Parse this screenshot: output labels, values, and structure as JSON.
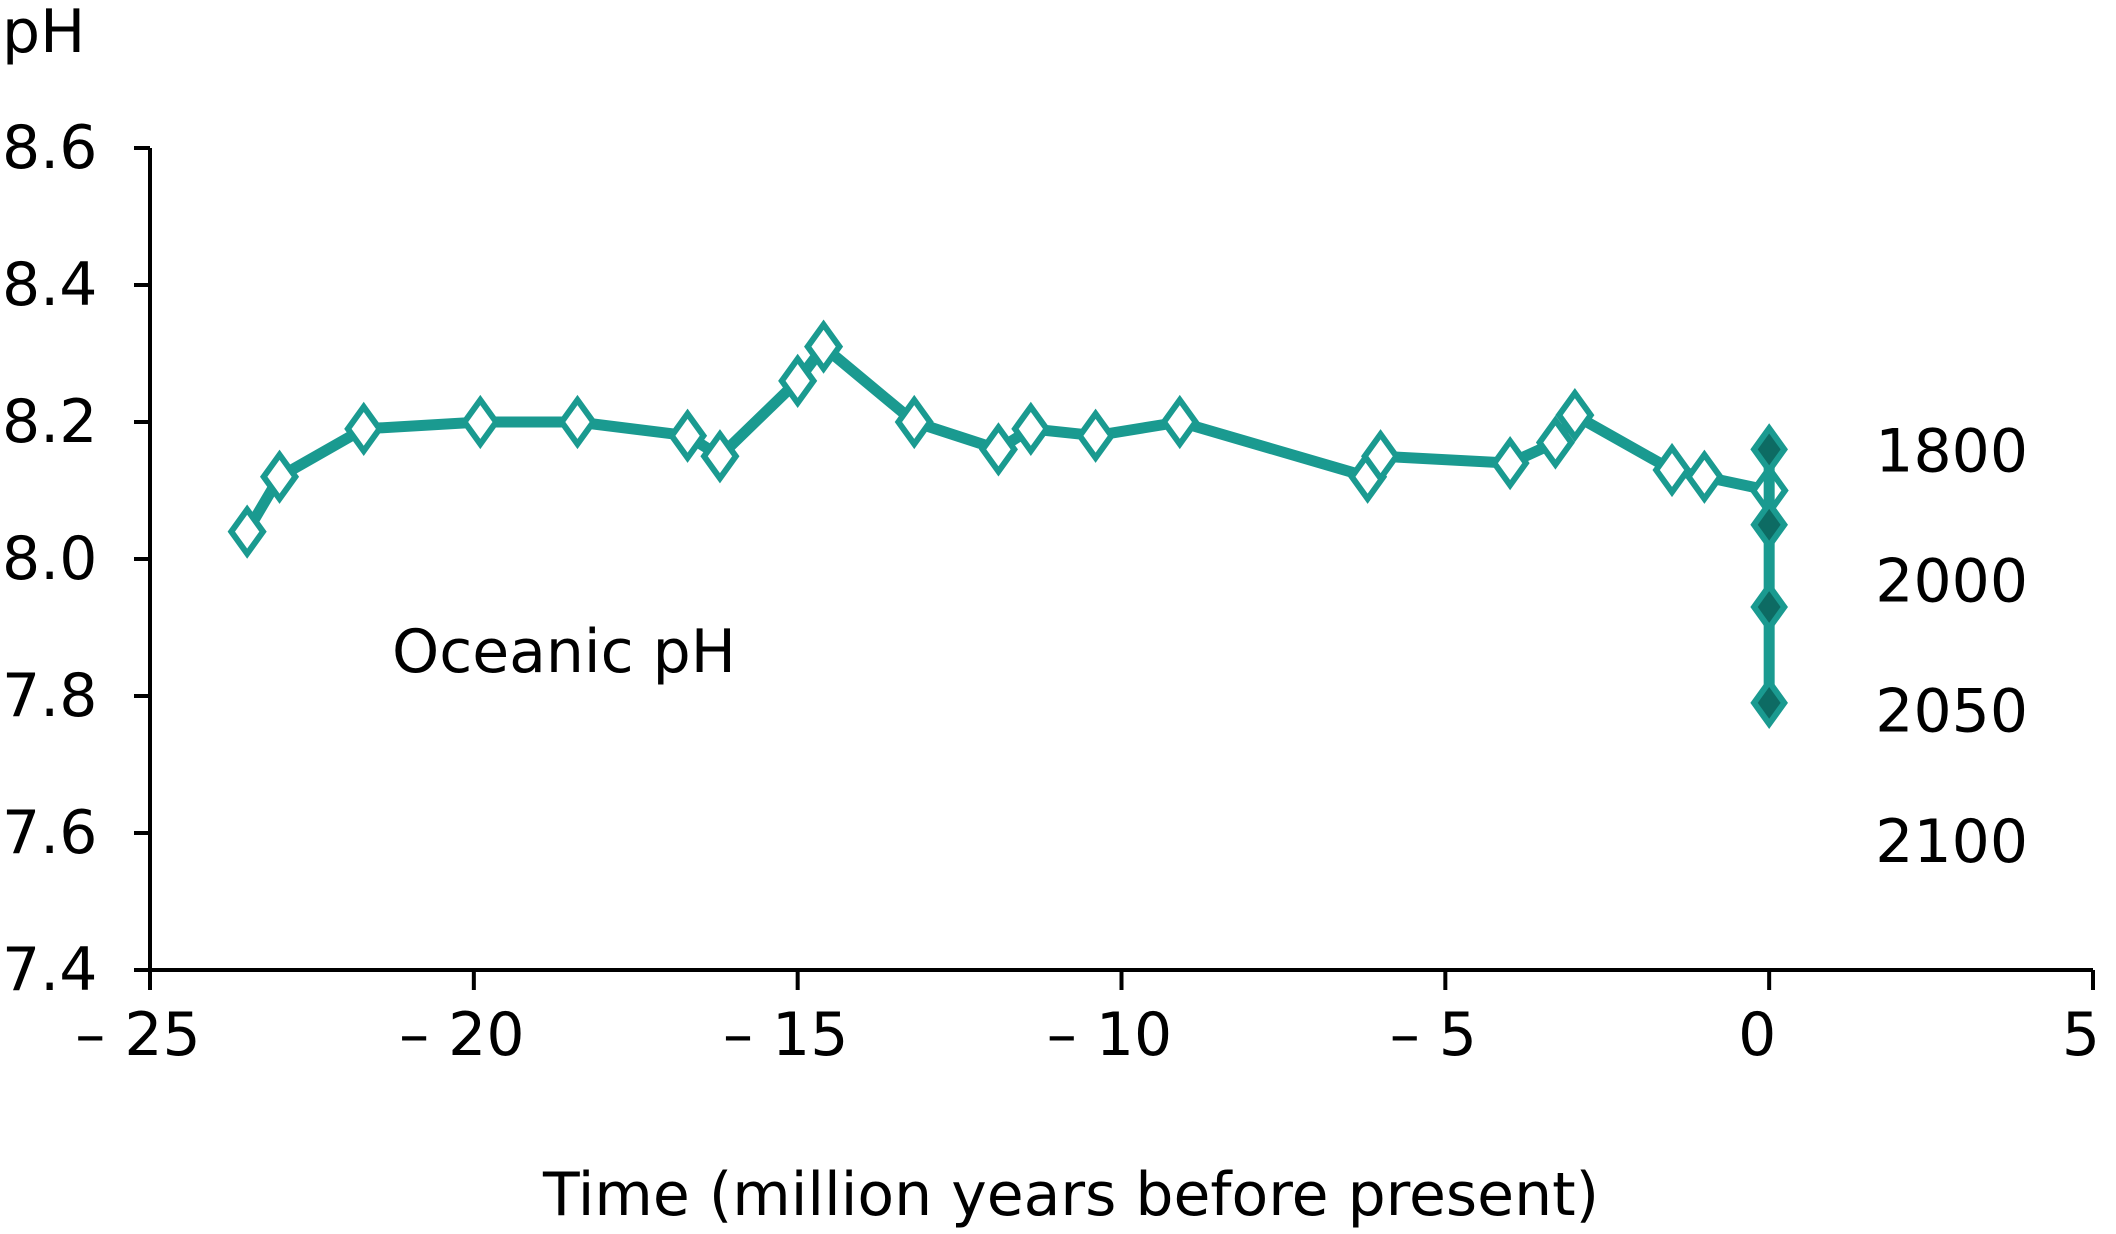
{
  "chart_data": {
    "type": "line",
    "ylabel": "pH",
    "xlabel": "Time (million years before present)",
    "xlim": [
      -25,
      5
    ],
    "ylim": [
      7.4,
      8.6
    ],
    "grid": false,
    "x_ticks": [
      {
        "value": -25,
        "label": "– 25"
      },
      {
        "value": -20,
        "label": "– 20"
      },
      {
        "value": -15,
        "label": "– 15"
      },
      {
        "value": -10,
        "label": "– 10"
      },
      {
        "value": -5,
        "label": "– 5"
      },
      {
        "value": 0,
        "label": "0"
      },
      {
        "value": 5,
        "label": "5"
      }
    ],
    "y_ticks": [
      {
        "value": 8.6,
        "label": "8.6"
      },
      {
        "value": 8.4,
        "label": "8.4"
      },
      {
        "value": 8.2,
        "label": "8.2"
      },
      {
        "value": 8.0,
        "label": "8.0"
      },
      {
        "value": 7.8,
        "label": "7.8"
      },
      {
        "value": 7.6,
        "label": "7.6"
      },
      {
        "value": 7.4,
        "label": "7.4"
      }
    ],
    "series": [
      {
        "name": "Oceanic pH",
        "color": "#1a9a90",
        "marker": "open-diamond",
        "x": [
          -23.5,
          -23.0,
          -21.7,
          -19.9,
          -18.4,
          -16.7,
          -16.2,
          -15.0,
          -14.6,
          -13.2,
          -11.9,
          -11.4,
          -10.4,
          -9.1,
          -6.2,
          -6.0,
          -4.0,
          -3.3,
          -3.0,
          -1.5,
          -1.0,
          0.0
        ],
        "y": [
          8.04,
          8.12,
          8.19,
          8.2,
          8.2,
          8.18,
          8.15,
          8.26,
          8.31,
          8.2,
          8.16,
          8.19,
          8.18,
          8.2,
          8.12,
          8.15,
          8.14,
          8.17,
          8.21,
          8.13,
          8.12,
          8.1
        ]
      },
      {
        "name": "",
        "color": "#1a9a90",
        "marker": "filled-diamond",
        "x": [
          0,
          0,
          0,
          0
        ],
        "y": [
          8.16,
          8.05,
          7.93,
          7.79
        ],
        "point_labels": [
          "1800",
          "2000",
          "2050",
          "2100"
        ]
      }
    ],
    "annotation": "Oceanic pH"
  }
}
